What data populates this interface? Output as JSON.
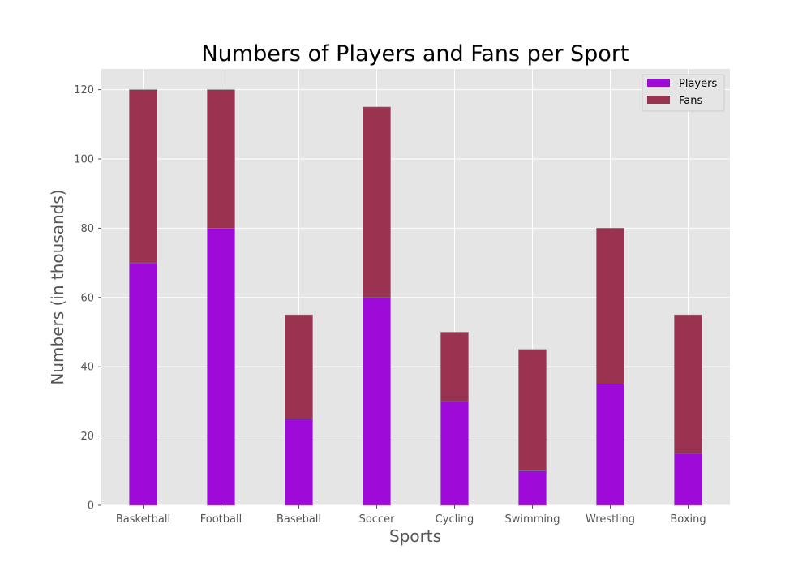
{
  "chart_data": {
    "type": "bar",
    "stacked": true,
    "title": "Numbers of Players and Fans per Sport",
    "xlabel": "Sports",
    "ylabel": "Numbers (in thousands)",
    "categories": [
      "Basketball",
      "Football",
      "Baseball",
      "Soccer",
      "Cycling",
      "Swimming",
      "Wrestling",
      "Boxing"
    ],
    "series": [
      {
        "name": "Players",
        "color": "#9e0bd9",
        "values": [
          70,
          80,
          25,
          60,
          30,
          10,
          35,
          15
        ]
      },
      {
        "name": "Fans",
        "color": "#993350",
        "values": [
          50,
          40,
          30,
          55,
          20,
          35,
          45,
          40
        ]
      }
    ],
    "ylim": [
      0,
      126
    ],
    "yticks": [
      0,
      20,
      40,
      60,
      80,
      100,
      120
    ],
    "grid": true,
    "legend": "top-right",
    "colors": {
      "plot_background": "#e5e5e5",
      "grid": "#ffffff",
      "bar_edge": "#808080"
    }
  }
}
